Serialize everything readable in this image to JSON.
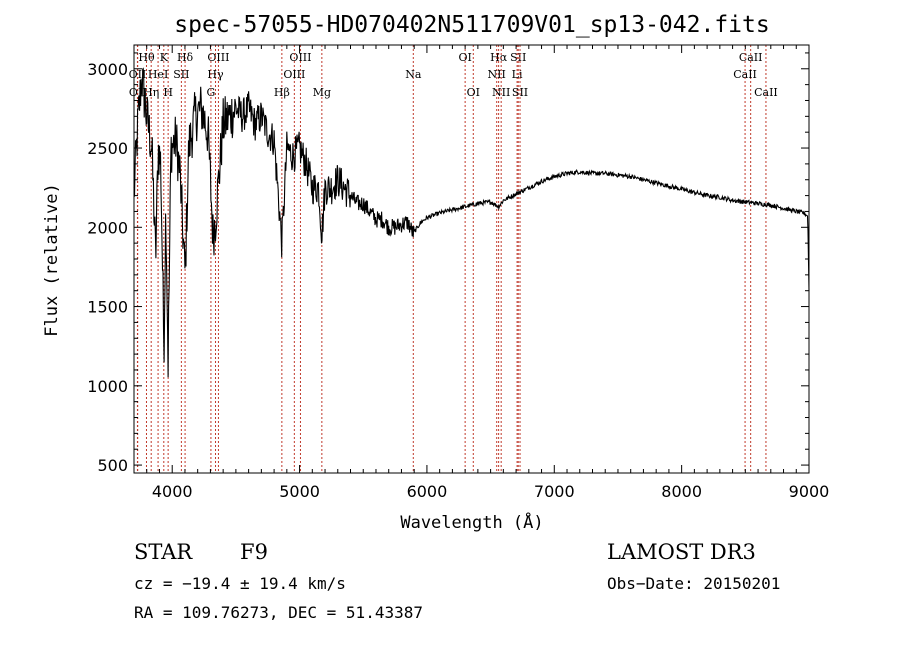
{
  "chart_data": {
    "type": "line",
    "title": "spec-57055-HD070402N511709V01_sp13-042.fits",
    "xlabel": "Wavelength (Å)",
    "ylabel": "Flux (relative)",
    "xlim": [
      3700,
      9000
    ],
    "ylim": [
      450,
      3150
    ],
    "x_ticks": [
      4000,
      5000,
      6000,
      7000,
      8000,
      9000
    ],
    "x_tick_labels": [
      "4000",
      "5000",
      "6000",
      "7000",
      "8000",
      "9000"
    ],
    "y_ticks": [
      500,
      1000,
      1500,
      2000,
      2500,
      3000
    ],
    "y_tick_labels": [
      "500",
      "1000",
      "1500",
      "2000",
      "2500",
      "3000"
    ],
    "grid": false,
    "line_color": "#000000",
    "marker_color": "#c0392b",
    "spectrum_knots": {
      "x": [
        3700,
        3730,
        3760,
        3800,
        3840,
        3870,
        3890,
        3910,
        3935,
        3950,
        3968,
        3990,
        4030,
        4060,
        4101,
        4130,
        4180,
        4230,
        4280,
        4300,
        4320,
        4340,
        4400,
        4450,
        4500,
        4550,
        4600,
        4650,
        4700,
        4750,
        4800,
        4861,
        4900,
        4950,
        5000,
        5050,
        5100,
        5150,
        5175,
        5200,
        5250,
        5300,
        5350,
        5400,
        5450,
        5500,
        5550,
        5600,
        5650,
        5700,
        5750,
        5800,
        5850,
        5893,
        5950,
        6000,
        6100,
        6200,
        6300,
        6400,
        6500,
        6563,
        6600,
        6700,
        6800,
        6900,
        7000,
        7100,
        7200,
        7300,
        7400,
        7500,
        7600,
        7700,
        7800,
        7900,
        8000,
        8100,
        8200,
        8300,
        8400,
        8500,
        8600,
        8700,
        8800,
        8900,
        8960,
        8990,
        9000
      ],
      "y": [
        2200,
        2650,
        2950,
        2700,
        2500,
        1800,
        2500,
        2400,
        1250,
        2150,
        1150,
        2500,
        2550,
        2350,
        1700,
        2500,
        2700,
        2750,
        2600,
        2300,
        1950,
        2050,
        2650,
        2700,
        2750,
        2700,
        2750,
        2650,
        2700,
        2600,
        2550,
        1900,
        2500,
        2450,
        2500,
        2400,
        2250,
        2250,
        1950,
        2250,
        2250,
        2300,
        2250,
        2200,
        2150,
        2150,
        2100,
        2050,
        2050,
        2000,
        2000,
        2020,
        2030,
        1960,
        2030,
        2060,
        2090,
        2110,
        2130,
        2150,
        2160,
        2130,
        2170,
        2210,
        2250,
        2290,
        2320,
        2340,
        2350,
        2340,
        2340,
        2330,
        2320,
        2300,
        2280,
        2260,
        2240,
        2220,
        2200,
        2190,
        2170,
        2160,
        2150,
        2140,
        2120,
        2100,
        2090,
        2070,
        1600
      ]
    },
    "line_markers": [
      {
        "label": "Hθ",
        "x": 3798,
        "row": 1
      },
      {
        "label": "K",
        "x": 3934,
        "row": 1
      },
      {
        "label": "Hδ",
        "x": 4101,
        "row": 1
      },
      {
        "label": "OIII",
        "x": 4363,
        "row": 1
      },
      {
        "label": "OIII",
        "x": 5007,
        "row": 1
      },
      {
        "label": "OI",
        "x": 6300,
        "row": 1
      },
      {
        "label": "Hα",
        "x": 6563,
        "row": 1
      },
      {
        "label": "SII",
        "x": 6717,
        "row": 1
      },
      {
        "label": "CaII",
        "x": 8542,
        "row": 1
      },
      {
        "label": "OII",
        "x": 3727,
        "row": 2
      },
      {
        "label": "HeI",
        "x": 3889,
        "row": 2
      },
      {
        "label": "SII",
        "x": 4072,
        "row": 2
      },
      {
        "label": "Hγ",
        "x": 4340,
        "row": 2
      },
      {
        "label": "OIII",
        "x": 4959,
        "row": 2
      },
      {
        "label": "Na",
        "x": 5893,
        "row": 2
      },
      {
        "label": "NII",
        "x": 6548,
        "row": 2
      },
      {
        "label": "Li",
        "x": 6708,
        "row": 2
      },
      {
        "label": "CaII",
        "x": 8498,
        "row": 2
      },
      {
        "label": "OII",
        "x": 3729,
        "row": 3
      },
      {
        "label": "Hη",
        "x": 3835,
        "row": 3
      },
      {
        "label": "H",
        "x": 3968,
        "row": 3
      },
      {
        "label": "G",
        "x": 4304,
        "row": 3
      },
      {
        "label": "Hβ",
        "x": 4861,
        "row": 3
      },
      {
        "label": "Mg",
        "x": 5175,
        "row": 3
      },
      {
        "label": "OI",
        "x": 6364,
        "row": 3
      },
      {
        "label": "NII",
        "x": 6583,
        "row": 3
      },
      {
        "label": "SII",
        "x": 6731,
        "row": 3
      },
      {
        "label": "CaII",
        "x": 8662,
        "row": 3
      }
    ]
  },
  "info": {
    "object_class": "STAR",
    "subclass": "F9",
    "survey": "LAMOST DR3",
    "redshift": "cz = −19.4 ± 19.4 km/s",
    "obs_date": "Obs−Date: 20150201",
    "coords": "RA = 109.76273, DEC =  51.43387"
  }
}
